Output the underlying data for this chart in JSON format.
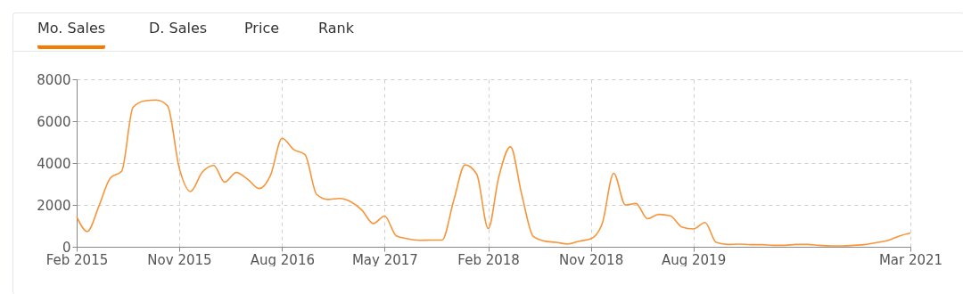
{
  "chart_data": {
    "type": "line",
    "annotations": [
      "Mo. Sales",
      "D. Sales",
      "Price",
      "Rank"
    ],
    "x": [
      "2015-02",
      "2015-03",
      "2015-04",
      "2015-05",
      "2015-06",
      "2015-07",
      "2015-08",
      "2015-09",
      "2015-10",
      "2015-11",
      "2015-12",
      "2016-01",
      "2016-02",
      "2016-03",
      "2016-04",
      "2016-05",
      "2016-06",
      "2016-07",
      "2016-08",
      "2016-09",
      "2016-10",
      "2016-11",
      "2016-12",
      "2017-01",
      "2017-02",
      "2017-03",
      "2017-04",
      "2017-05",
      "2017-06",
      "2017-07",
      "2017-08",
      "2017-09",
      "2017-10",
      "2017-11",
      "2017-12",
      "2018-01",
      "2018-02",
      "2018-03",
      "2018-04",
      "2018-05",
      "2018-06",
      "2018-07",
      "2018-08",
      "2018-09",
      "2018-10",
      "2018-11",
      "2018-12",
      "2019-01",
      "2019-02",
      "2019-03",
      "2019-04",
      "2019-05",
      "2019-06",
      "2019-07",
      "2019-08",
      "2019-09",
      "2019-10",
      "2019-11",
      "2019-12",
      "2020-01",
      "2020-02",
      "2020-03",
      "2020-04",
      "2020-05",
      "2020-06",
      "2020-07",
      "2020-08",
      "2020-09",
      "2020-10",
      "2020-11",
      "2020-12",
      "2021-01",
      "2021-02",
      "2021-03"
    ],
    "series": [
      {
        "color": "#f7953a",
        "values": [
          1440,
          730,
          1930,
          3270,
          3620,
          6660,
          6970,
          7010,
          6730,
          3770,
          2640,
          3550,
          3880,
          3090,
          3550,
          3230,
          2780,
          3410,
          5180,
          4640,
          4400,
          2500,
          2260,
          2310,
          2140,
          1760,
          1110,
          1470,
          520,
          380,
          310,
          320,
          320,
          2210,
          3910,
          3480,
          870,
          3340,
          4780,
          2500,
          490,
          270,
          210,
          130,
          270,
          380,
          1090,
          3510,
          2000,
          2070,
          1340,
          1550,
          1480,
          950,
          850,
          1160,
          210,
          110,
          130,
          100,
          100,
          70,
          70,
          110,
          110,
          70,
          40,
          40,
          70,
          110,
          200,
          310,
          520,
          660
        ]
      }
    ],
    "xlim": [
      "2015-02",
      "2021-03"
    ],
    "xticks": [
      {
        "value": "2015-02",
        "label": "Feb 2015"
      },
      {
        "value": "2015-11",
        "label": "Nov 2015"
      },
      {
        "value": "2016-08",
        "label": "Aug 2016"
      },
      {
        "value": "2017-05",
        "label": "May 2017"
      },
      {
        "value": "2018-02",
        "label": "Feb 2018"
      },
      {
        "value": "2018-11",
        "label": "Nov 2018"
      },
      {
        "value": "2019-08",
        "label": "Aug 2019"
      },
      {
        "value": "2021-03",
        "label": "Mar 2021"
      }
    ],
    "ylim": [
      0,
      8000
    ],
    "yticks": [
      0,
      2000,
      4000,
      6000,
      8000
    ],
    "grid": true,
    "line_style": "solid"
  }
}
